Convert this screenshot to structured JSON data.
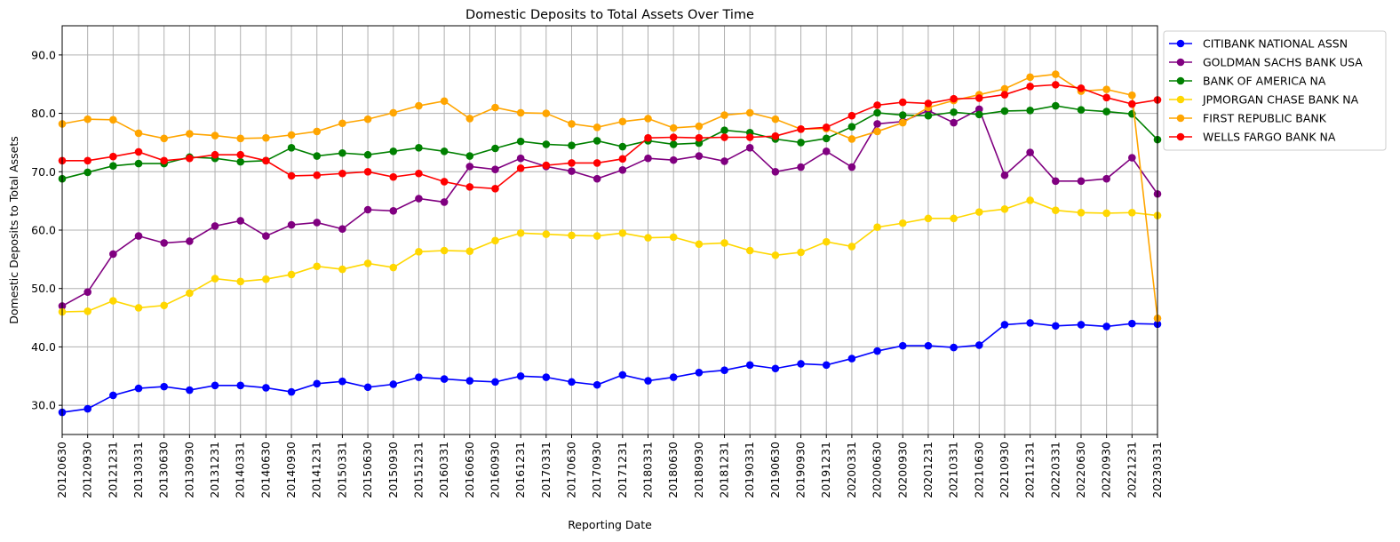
{
  "chart_data": {
    "type": "line",
    "title": "Domestic Deposits to Total Assets Over Time",
    "xlabel": "Reporting Date",
    "ylabel": "Domestic Deposits to Total Assets",
    "ylim": [
      25.0,
      95.0
    ],
    "yticks": [
      "30.0",
      "40.0",
      "50.0",
      "60.0",
      "70.0",
      "80.0",
      "90.0"
    ],
    "grid": true,
    "legend_position": "outside-top-right",
    "x": [
      "20120630",
      "20120930",
      "20121231",
      "20130331",
      "20130630",
      "20130930",
      "20131231",
      "20140331",
      "20140630",
      "20140930",
      "20141231",
      "20150331",
      "20150630",
      "20150930",
      "20151231",
      "20160331",
      "20160630",
      "20160930",
      "20161231",
      "20170331",
      "20170630",
      "20170930",
      "20171231",
      "20180331",
      "20180630",
      "20180930",
      "20181231",
      "20190331",
      "20190630",
      "20190930",
      "20191231",
      "20200331",
      "20200630",
      "20200930",
      "20201231",
      "20210331",
      "20210630",
      "20210930",
      "20211231",
      "20220331",
      "20220630",
      "20220930",
      "20221231",
      "20230331"
    ],
    "series": [
      {
        "name": "CITIBANK NATIONAL ASSN",
        "color": "#0000ff",
        "values": [
          28.8,
          29.4,
          31.7,
          32.9,
          33.2,
          32.6,
          33.4,
          33.4,
          33.0,
          32.3,
          33.7,
          34.1,
          33.1,
          33.6,
          34.8,
          34.5,
          34.2,
          34.0,
          35.0,
          34.8,
          34.0,
          33.5,
          35.2,
          34.2,
          34.8,
          35.6,
          36.0,
          36.9,
          36.3,
          37.1,
          36.9,
          38.0,
          39.3,
          40.2,
          40.2,
          39.9,
          40.3,
          43.8,
          44.1,
          43.6,
          43.8,
          43.5,
          44.0,
          43.9
        ]
      },
      {
        "name": "GOLDMAN SACHS BANK USA",
        "color": "#800080",
        "values": [
          47.0,
          49.4,
          55.9,
          59.0,
          57.8,
          58.1,
          60.7,
          61.6,
          59.0,
          60.9,
          61.3,
          60.2,
          63.5,
          63.3,
          65.4,
          64.8,
          70.9,
          70.4,
          72.3,
          70.9,
          70.1,
          68.8,
          70.3,
          72.3,
          72.0,
          72.7,
          71.8,
          74.1,
          70.0,
          70.8,
          73.5,
          70.8,
          78.2,
          78.6,
          80.5,
          78.4,
          80.7,
          69.4,
          73.3,
          68.4,
          68.4,
          68.8,
          72.4,
          66.2
        ]
      },
      {
        "name": "BANK OF AMERICA NA",
        "color": "#008000",
        "values": [
          68.8,
          69.9,
          71.0,
          71.4,
          71.4,
          72.5,
          72.3,
          71.7,
          71.9,
          74.1,
          72.7,
          73.2,
          72.9,
          73.5,
          74.1,
          73.5,
          72.7,
          74.0,
          75.2,
          74.7,
          74.5,
          75.3,
          74.3,
          75.3,
          74.7,
          74.9,
          77.1,
          76.7,
          75.6,
          75.0,
          75.7,
          77.7,
          80.1,
          79.7,
          79.6,
          80.2,
          79.8,
          80.4,
          80.5,
          81.3,
          80.6,
          80.3,
          79.9,
          75.5
        ]
      },
      {
        "name": "JPMORGAN CHASE BANK NA",
        "color": "#ffd700",
        "values": [
          46.0,
          46.1,
          47.9,
          46.7,
          47.1,
          49.2,
          51.7,
          51.2,
          51.6,
          52.4,
          53.8,
          53.3,
          54.3,
          53.6,
          56.3,
          56.5,
          56.4,
          58.2,
          59.5,
          59.3,
          59.1,
          59.0,
          59.5,
          58.7,
          58.8,
          57.6,
          57.8,
          56.5,
          55.7,
          56.2,
          58.0,
          57.2,
          60.5,
          61.2,
          62.0,
          62.0,
          63.1,
          63.6,
          65.1,
          63.4,
          63.0,
          62.9,
          63.0,
          62.5
        ]
      },
      {
        "name": "FIRST REPUBLIC BANK",
        "color": "#ffa500",
        "values": [
          78.2,
          79.0,
          78.9,
          76.6,
          75.7,
          76.5,
          76.2,
          75.7,
          75.8,
          76.3,
          76.9,
          78.3,
          79.0,
          80.1,
          81.3,
          82.1,
          79.1,
          81.0,
          80.1,
          80.0,
          78.2,
          77.6,
          78.6,
          79.1,
          77.5,
          77.8,
          79.7,
          80.1,
          79.0,
          77.3,
          77.4,
          75.6,
          76.9,
          78.4,
          81.0,
          82.2,
          83.2,
          84.2,
          86.2,
          86.7,
          83.8,
          84.1,
          83.1,
          44.9
        ]
      },
      {
        "name": "WELLS FARGO BANK NA",
        "color": "#ff0000",
        "values": [
          71.9,
          71.9,
          72.6,
          73.4,
          71.9,
          72.3,
          72.9,
          72.9,
          71.9,
          69.3,
          69.4,
          69.7,
          70.0,
          69.1,
          69.7,
          68.3,
          67.4,
          67.1,
          70.6,
          71.1,
          71.5,
          71.5,
          72.2,
          75.8,
          75.9,
          75.8,
          75.9,
          75.9,
          76.1,
          77.3,
          77.6,
          79.6,
          81.4,
          81.9,
          81.7,
          82.5,
          82.6,
          83.2,
          84.6,
          84.9,
          84.3,
          82.7,
          81.6,
          82.3
        ]
      }
    ]
  }
}
